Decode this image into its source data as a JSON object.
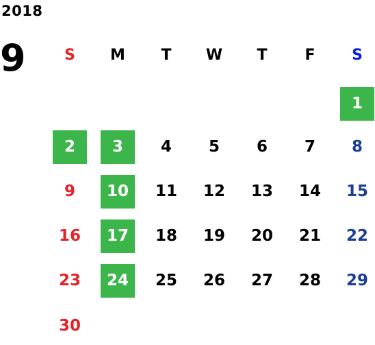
{
  "year": "2018",
  "month": "9",
  "colors": {
    "sunday": "#e0242a",
    "saturday": "#1c3f94",
    "weekday": "#000000",
    "saturday_header": "#0a1fd6",
    "highlight_bg": "#3cb54a",
    "highlight_text": "#ffffff"
  },
  "weekdays": [
    "S",
    "M",
    "T",
    "W",
    "T",
    "F",
    "S"
  ],
  "first_weekday_index": 6,
  "days": [
    {
      "label": "1",
      "highlight": true
    },
    {
      "label": "2",
      "highlight": true
    },
    {
      "label": "3",
      "highlight": true
    },
    {
      "label": "4",
      "highlight": false
    },
    {
      "label": "5",
      "highlight": false
    },
    {
      "label": "6",
      "highlight": false
    },
    {
      "label": "7",
      "highlight": false
    },
    {
      "label": "8",
      "highlight": false
    },
    {
      "label": "9",
      "highlight": false
    },
    {
      "label": "10",
      "highlight": true
    },
    {
      "label": "11",
      "highlight": false
    },
    {
      "label": "12",
      "highlight": false
    },
    {
      "label": "13",
      "highlight": false
    },
    {
      "label": "14",
      "highlight": false
    },
    {
      "label": "15",
      "highlight": false
    },
    {
      "label": "16",
      "highlight": false
    },
    {
      "label": "17",
      "highlight": true
    },
    {
      "label": "18",
      "highlight": false
    },
    {
      "label": "19",
      "highlight": false
    },
    {
      "label": "20",
      "highlight": false
    },
    {
      "label": "21",
      "highlight": false
    },
    {
      "label": "22",
      "highlight": false
    },
    {
      "label": "23",
      "highlight": false
    },
    {
      "label": "24",
      "highlight": true
    },
    {
      "label": "25",
      "highlight": false
    },
    {
      "label": "26",
      "highlight": false
    },
    {
      "label": "27",
      "highlight": false
    },
    {
      "label": "28",
      "highlight": false
    },
    {
      "label": "29",
      "highlight": false
    },
    {
      "label": "30",
      "highlight": false
    }
  ]
}
